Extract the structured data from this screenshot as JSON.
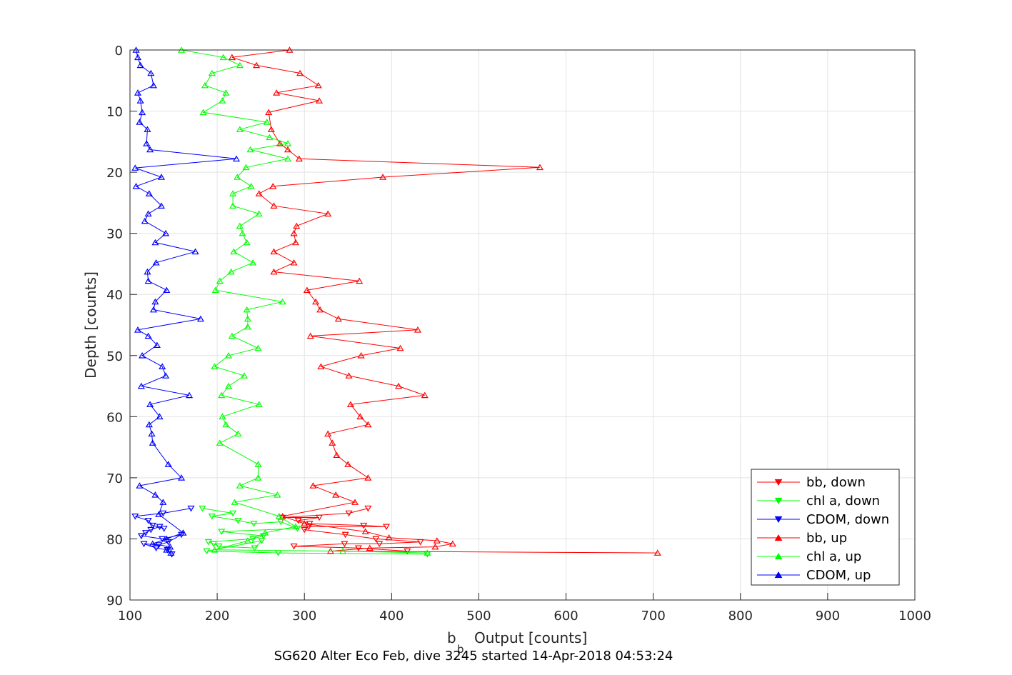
{
  "chart_data": {
    "type": "line",
    "title": "",
    "caption": "SG620 Alter Eco Feb, dive 3245 started 14-Apr-2018 04:53:24",
    "xlabel_main": "b",
    "xlabel_sub": "b",
    "xlabel_rest": "Output [counts]",
    "ylabel": "Depth [counts]",
    "xlim": [
      100,
      1000
    ],
    "ylim": [
      0,
      90
    ],
    "y_reversed": true,
    "grid": true,
    "legend_position": "bottom-right",
    "xticks": [
      "100",
      "200",
      "300",
      "400",
      "500",
      "600",
      "700",
      "800",
      "900",
      "1000"
    ],
    "yticks": [
      "0",
      "10",
      "20",
      "30",
      "40",
      "50",
      "60",
      "70",
      "80",
      "90"
    ],
    "series": [
      {
        "name": "bb, down",
        "color": "#ff0000",
        "marker": "triangle-down",
        "x": [
          373,
          351,
          275,
          317,
          293,
          306,
          368,
          394,
          305,
          300,
          347,
          382,
          433,
          386,
          346,
          288,
          362,
          418
        ],
        "y": [
          75.0,
          75.8,
          76.5,
          76.5,
          77.0,
          77.5,
          77.8,
          78.0,
          78.0,
          78.5,
          79.3,
          80.0,
          80.5,
          80.8,
          80.8,
          81.2,
          81.5,
          82.0
        ]
      },
      {
        "name": "chl a, down",
        "color": "#00ff00",
        "marker": "triangle-down",
        "x": [
          183,
          218,
          194,
          224,
          242,
          273,
          292,
          205,
          253,
          241,
          190,
          196,
          202,
          243,
          251,
          188,
          270,
          441
        ],
        "y": [
          75.0,
          75.8,
          76.3,
          77.0,
          77.5,
          77.2,
          78.3,
          78.8,
          79.5,
          80.0,
          80.5,
          80.8,
          81.2,
          81.5,
          80.3,
          82.0,
          82.3,
          82.5
        ]
      },
      {
        "name": "CDOM, down",
        "color": "#0000ff",
        "marker": "triangle-down",
        "x": [
          170,
          138,
          106,
          121,
          126,
          139,
          134,
          124,
          118,
          113,
          137,
          159,
          144,
          133,
          116,
          130,
          143,
          148
        ],
        "y": [
          75.0,
          75.8,
          76.3,
          77.0,
          77.8,
          78.3,
          78.0,
          78.5,
          79.0,
          79.5,
          80.0,
          79.3,
          80.5,
          81.0,
          80.8,
          81.5,
          81.8,
          82.5
        ]
      },
      {
        "name": "bb, up",
        "color": "#ff0000",
        "marker": "triangle-up",
        "x": [
          283,
          217,
          245,
          295,
          316,
          268,
          317,
          259,
          262,
          272,
          281,
          294,
          570,
          390,
          264,
          248,
          265,
          327,
          291,
          288,
          290,
          265,
          288,
          265,
          363,
          303,
          313,
          318,
          339,
          430,
          307,
          410,
          365,
          319,
          351,
          408,
          438,
          353,
          364,
          373,
          327,
          332,
          337,
          350,
          373,
          310,
          336,
          358,
          275,
          300,
          370,
          397,
          452,
          470,
          450,
          375,
          330,
          705
        ],
        "y": [
          0.0,
          1.2,
          2.5,
          3.8,
          5.8,
          7.0,
          8.3,
          10.2,
          13.0,
          15.3,
          16.3,
          17.8,
          19.2,
          20.8,
          22.3,
          23.5,
          25.5,
          26.8,
          28.8,
          30.0,
          31.5,
          33.0,
          34.8,
          36.3,
          37.8,
          39.3,
          41.2,
          42.5,
          44.0,
          45.8,
          46.8,
          48.8,
          50.0,
          51.8,
          53.3,
          55.0,
          56.5,
          58.0,
          60.0,
          61.3,
          62.8,
          64.3,
          66.3,
          67.8,
          70.0,
          71.3,
          72.8,
          74.0,
          76.3,
          77.5,
          78.8,
          79.8,
          80.3,
          80.8,
          81.3,
          81.5,
          82.0,
          82.3
        ]
      },
      {
        "name": "chl a, up",
        "color": "#00ff00",
        "marker": "triangle-up",
        "x": [
          159,
          207,
          226,
          194,
          186,
          210,
          206,
          184,
          257,
          226,
          260,
          281,
          238,
          281,
          233,
          223,
          239,
          218,
          218,
          248,
          226,
          229,
          234,
          219,
          241,
          216,
          203,
          198,
          275,
          234,
          235,
          235,
          217,
          247,
          213,
          197,
          231,
          213,
          205,
          248,
          206,
          210,
          224,
          203,
          247,
          247,
          226,
          269,
          220,
          271,
          290,
          255,
          235,
          197,
          344,
          441
        ],
        "y": [
          0.0,
          1.2,
          2.5,
          3.8,
          5.8,
          7.0,
          8.3,
          10.2,
          11.8,
          13.0,
          14.3,
          15.3,
          16.3,
          17.8,
          19.2,
          20.8,
          22.3,
          23.5,
          25.5,
          26.8,
          28.8,
          30.0,
          31.5,
          33.0,
          34.8,
          36.3,
          37.8,
          39.3,
          41.2,
          42.5,
          44.0,
          45.3,
          46.8,
          48.8,
          50.0,
          51.8,
          53.3,
          55.0,
          56.5,
          58.0,
          60.0,
          61.3,
          62.8,
          64.3,
          67.8,
          70.0,
          71.3,
          72.8,
          74.0,
          76.3,
          78.0,
          79.0,
          80.3,
          81.8,
          82.0,
          82.3
        ]
      },
      {
        "name": "CDOM, up",
        "color": "#0000ff",
        "marker": "triangle-up",
        "x": [
          107,
          109,
          112,
          124,
          127,
          109,
          112,
          114,
          111,
          120,
          119,
          123,
          222,
          106,
          136,
          107,
          122,
          136,
          121,
          117,
          141,
          129,
          175,
          130,
          120,
          121,
          142,
          129,
          127,
          181,
          109,
          121,
          131,
          114,
          137,
          141,
          113,
          168,
          123,
          134,
          122,
          125,
          126,
          144,
          159,
          111,
          129,
          138,
          133,
          161,
          142,
          126,
          146,
          142,
          147
        ],
        "y": [
          0.0,
          1.2,
          2.5,
          3.8,
          5.8,
          7.0,
          8.3,
          10.2,
          11.8,
          13.0,
          15.3,
          16.3,
          17.8,
          19.3,
          20.8,
          22.3,
          23.5,
          25.5,
          26.8,
          28.0,
          30.0,
          31.5,
          33.0,
          34.8,
          36.3,
          37.8,
          39.3,
          41.2,
          42.5,
          44.0,
          45.8,
          46.8,
          48.3,
          50.0,
          51.8,
          53.3,
          55.0,
          56.5,
          58.0,
          60.0,
          61.3,
          62.8,
          64.3,
          67.8,
          70.0,
          71.3,
          72.8,
          74.0,
          76.0,
          79.0,
          80.0,
          80.8,
          81.3,
          81.8,
          82.3
        ]
      }
    ]
  }
}
